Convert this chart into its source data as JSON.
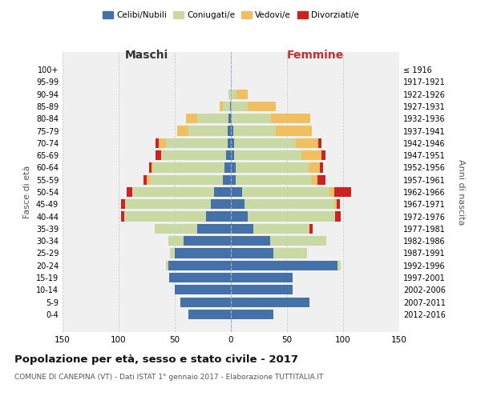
{
  "age_groups": [
    "0-4",
    "5-9",
    "10-14",
    "15-19",
    "20-24",
    "25-29",
    "30-34",
    "35-39",
    "40-44",
    "45-49",
    "50-54",
    "55-59",
    "60-64",
    "65-69",
    "70-74",
    "75-79",
    "80-84",
    "85-89",
    "90-94",
    "95-99",
    "100+"
  ],
  "birth_years": [
    "2012-2016",
    "2007-2011",
    "2002-2006",
    "1997-2001",
    "1992-1996",
    "1987-1991",
    "1982-1986",
    "1977-1981",
    "1972-1976",
    "1967-1971",
    "1962-1966",
    "1957-1961",
    "1952-1956",
    "1947-1951",
    "1942-1946",
    "1937-1941",
    "1932-1936",
    "1927-1931",
    "1922-1926",
    "1917-1921",
    "≤ 1916"
  ],
  "colors": {
    "celibi": "#4472a8",
    "coniugati": "#c8d9a4",
    "vedovi": "#f0c060",
    "divorziati": "#cc2222"
  },
  "male": {
    "celibi": [
      38,
      45,
      50,
      55,
      56,
      50,
      42,
      30,
      22,
      18,
      15,
      7,
      6,
      4,
      3,
      3,
      2,
      1,
      0,
      0,
      0
    ],
    "coniugati": [
      0,
      0,
      0,
      0,
      2,
      4,
      14,
      38,
      73,
      76,
      73,
      65,
      63,
      58,
      55,
      35,
      28,
      6,
      2,
      0,
      0
    ],
    "vedovi": [
      0,
      0,
      0,
      0,
      0,
      0,
      0,
      0,
      0,
      0,
      0,
      3,
      2,
      0,
      6,
      10,
      10,
      3,
      0,
      0,
      0
    ],
    "divorziati": [
      0,
      0,
      0,
      0,
      0,
      0,
      0,
      0,
      3,
      4,
      5,
      3,
      2,
      5,
      3,
      0,
      0,
      0,
      0,
      0,
      0
    ]
  },
  "female": {
    "nubili": [
      38,
      70,
      55,
      55,
      95,
      38,
      35,
      20,
      15,
      12,
      10,
      4,
      4,
      3,
      3,
      2,
      1,
      0,
      0,
      0,
      0
    ],
    "coniugate": [
      0,
      0,
      0,
      0,
      3,
      30,
      50,
      50,
      78,
      80,
      78,
      68,
      65,
      60,
      55,
      38,
      35,
      15,
      5,
      1,
      0
    ],
    "vedove": [
      0,
      0,
      0,
      0,
      0,
      0,
      0,
      0,
      0,
      2,
      4,
      5,
      10,
      18,
      20,
      32,
      35,
      25,
      10,
      0,
      0
    ],
    "divorziate": [
      0,
      0,
      0,
      0,
      0,
      0,
      0,
      3,
      5,
      3,
      15,
      7,
      3,
      3,
      3,
      0,
      0,
      0,
      0,
      0,
      0
    ]
  },
  "title": "Popolazione per età, sesso e stato civile - 2017",
  "subtitle": "COMUNE DI CANEPINA (VT) - Dati ISTAT 1° gennaio 2017 - Elaborazione TUTTITALIA.IT",
  "xlabel_left": "Maschi",
  "xlabel_right": "Femmine",
  "ylabel_left": "Fasce di età",
  "ylabel_right": "Anni di nascita",
  "xlim": 150,
  "background_color": "#ffffff",
  "plot_bg": "#f0f0f0",
  "grid_color": "#cccccc"
}
